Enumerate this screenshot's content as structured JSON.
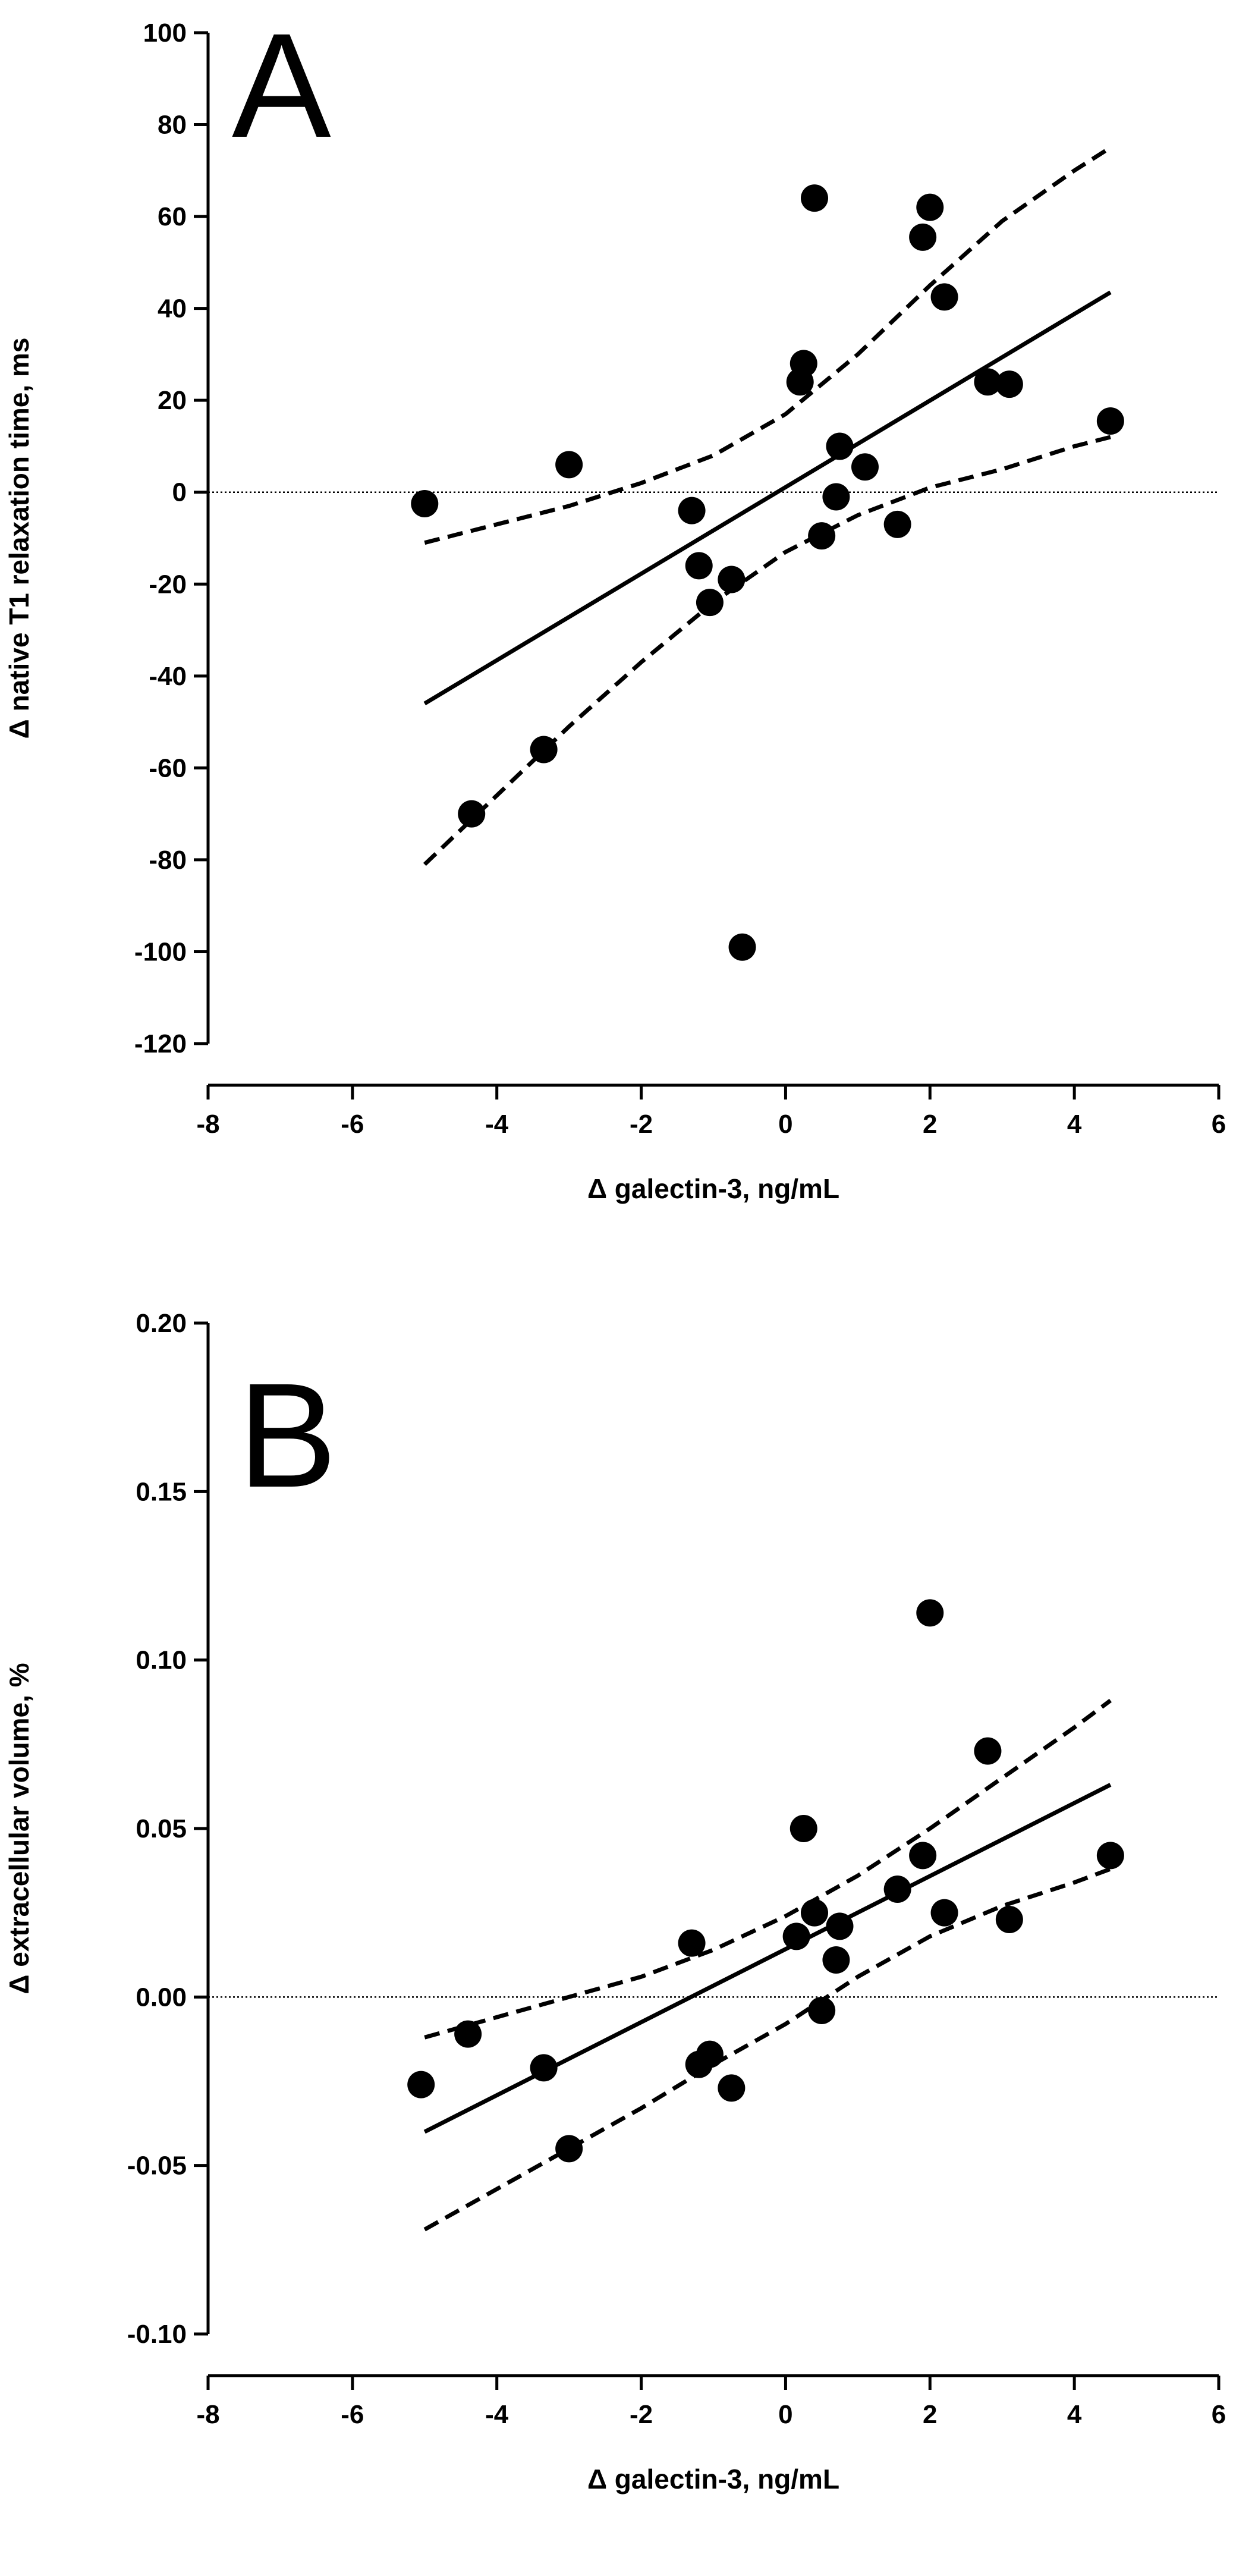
{
  "chart_data": [
    {
      "type": "scatter",
      "panel_label": "A",
      "xlabel": "Δ galectin-3, ng/mL",
      "ylabel": "Δ native T1 relaxation time, ms",
      "xlim": [
        -8,
        6
      ],
      "ylim": [
        -120,
        100
      ],
      "x_ticks": [
        -8,
        -6,
        -4,
        -2,
        0,
        2,
        4,
        6
      ],
      "y_ticks": [
        -120,
        -100,
        -80,
        -60,
        -40,
        -20,
        0,
        20,
        40,
        60,
        80,
        100
      ],
      "x_tick_labels": [
        "-8",
        "-6",
        "-4",
        "-2",
        "0",
        "2",
        "4",
        "6"
      ],
      "y_tick_labels": [
        "-120",
        "-100",
        "-80",
        "-60",
        "-40",
        "-20",
        "0",
        "20",
        "40",
        "60",
        "80",
        "100"
      ],
      "reference_line_y": 0,
      "grid": false,
      "points": [
        {
          "x": -5.0,
          "y": -2.5
        },
        {
          "x": -3.0,
          "y": 6
        },
        {
          "x": -4.35,
          "y": -70
        },
        {
          "x": -3.35,
          "y": -56
        },
        {
          "x": -1.3,
          "y": -4
        },
        {
          "x": -1.2,
          "y": -16
        },
        {
          "x": -1.05,
          "y": -24
        },
        {
          "x": -0.75,
          "y": -19
        },
        {
          "x": -0.6,
          "y": -99
        },
        {
          "x": 0.2,
          "y": 24
        },
        {
          "x": 0.25,
          "y": 28
        },
        {
          "x": 0.4,
          "y": 64
        },
        {
          "x": 0.5,
          "y": -9.5
        },
        {
          "x": 0.7,
          "y": -1
        },
        {
          "x": 0.75,
          "y": 10
        },
        {
          "x": 1.1,
          "y": 5.5
        },
        {
          "x": 1.55,
          "y": -7
        },
        {
          "x": 1.9,
          "y": 55.5
        },
        {
          "x": 2.0,
          "y": 62
        },
        {
          "x": 2.2,
          "y": 42.5
        },
        {
          "x": 2.8,
          "y": 24
        },
        {
          "x": 3.1,
          "y": 23.5
        },
        {
          "x": 4.5,
          "y": 15.5
        }
      ],
      "regression_line": {
        "x": [
          -5.0,
          4.5
        ],
        "y": [
          -46,
          43.5
        ]
      },
      "confidence_band_upper": {
        "x": [
          -5.0,
          -4.0,
          -3.0,
          -2.0,
          -1.0,
          0.0,
          1.0,
          2.0,
          3.0,
          4.0,
          4.5
        ],
        "y": [
          -11,
          -7,
          -3,
          2,
          8,
          17,
          30,
          45,
          59,
          70,
          75
        ]
      },
      "confidence_band_lower": {
        "x": [
          -5.0,
          -4.0,
          -3.0,
          -2.0,
          -1.0,
          0.0,
          1.0,
          2.0,
          3.0,
          4.0,
          4.5
        ],
        "y": [
          -81,
          -66,
          -51,
          -37,
          -24,
          -13,
          -5,
          1,
          5,
          10,
          12
        ]
      }
    },
    {
      "type": "scatter",
      "panel_label": "B",
      "xlabel": "Δ galectin-3, ng/mL",
      "ylabel": "Δ extracellular volume, %",
      "xlim": [
        -8,
        6
      ],
      "ylim": [
        -0.1,
        0.2
      ],
      "x_ticks": [
        -8,
        -6,
        -4,
        -2,
        0,
        2,
        4,
        6
      ],
      "y_ticks": [
        -0.1,
        -0.05,
        0.0,
        0.05,
        0.1,
        0.15,
        0.2
      ],
      "x_tick_labels": [
        "-8",
        "-6",
        "-4",
        "-2",
        "0",
        "2",
        "4",
        "6"
      ],
      "y_tick_labels": [
        "-0.10",
        "-0.05",
        "0.00",
        "0.05",
        "0.10",
        "0.15",
        "0.20"
      ],
      "reference_line_y": 0,
      "grid": false,
      "points": [
        {
          "x": -5.05,
          "y": -0.026
        },
        {
          "x": -4.4,
          "y": -0.011
        },
        {
          "x": -3.35,
          "y": -0.021
        },
        {
          "x": -3.0,
          "y": -0.045
        },
        {
          "x": -1.3,
          "y": 0.016
        },
        {
          "x": -1.2,
          "y": -0.02
        },
        {
          "x": -1.05,
          "y": -0.017
        },
        {
          "x": -0.75,
          "y": -0.027
        },
        {
          "x": 0.15,
          "y": 0.018
        },
        {
          "x": 0.25,
          "y": 0.05
        },
        {
          "x": 0.4,
          "y": 0.025
        },
        {
          "x": 0.5,
          "y": -0.004
        },
        {
          "x": 0.7,
          "y": 0.011
        },
        {
          "x": 0.75,
          "y": 0.021
        },
        {
          "x": 1.55,
          "y": 0.032
        },
        {
          "x": 1.9,
          "y": 0.042
        },
        {
          "x": 2.0,
          "y": 0.114
        },
        {
          "x": 2.2,
          "y": 0.025
        },
        {
          "x": 2.8,
          "y": 0.073
        },
        {
          "x": 3.1,
          "y": 0.023
        },
        {
          "x": 4.5,
          "y": 0.042
        }
      ],
      "regression_line": {
        "x": [
          -5.0,
          4.5
        ],
        "y": [
          -0.04,
          0.063
        ]
      },
      "confidence_band_upper": {
        "x": [
          -5.0,
          -4.0,
          -3.0,
          -2.0,
          -1.0,
          0.0,
          1.0,
          2.0,
          3.0,
          4.0,
          4.5
        ],
        "y": [
          -0.012,
          -0.006,
          0.0,
          0.006,
          0.014,
          0.024,
          0.036,
          0.05,
          0.065,
          0.08,
          0.088
        ]
      },
      "confidence_band_lower": {
        "x": [
          -5.0,
          -4.0,
          -3.0,
          -2.0,
          -1.0,
          0.0,
          1.0,
          2.0,
          3.0,
          4.0,
          4.5
        ],
        "y": [
          -0.069,
          -0.057,
          -0.045,
          -0.033,
          -0.02,
          -0.008,
          0.006,
          0.018,
          0.027,
          0.034,
          0.038
        ]
      }
    }
  ]
}
